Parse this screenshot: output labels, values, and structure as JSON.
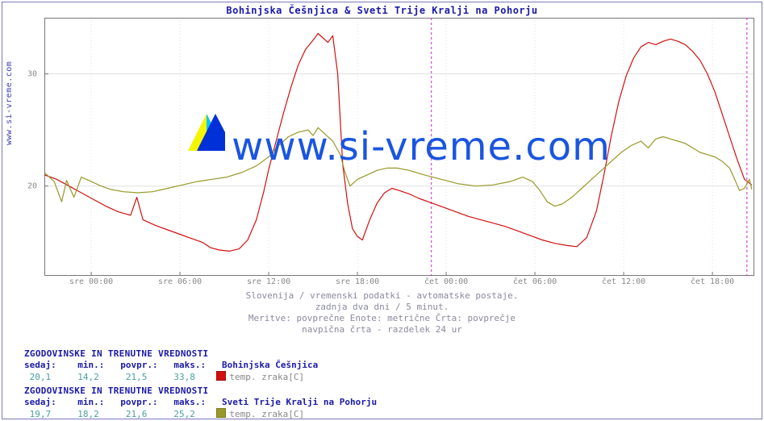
{
  "frame_border_color": "#7a7ab8",
  "side_label": "www.si-vreme.com",
  "title": "Bohinjska Češnjica & Sveti Trije Kralji na Pohorju",
  "watermark_text": "www.si-vreme.com",
  "watermark_color": "#1a55e0",
  "chart": {
    "type": "line",
    "background_color": "#ffffff",
    "grid_color": "#e0e0e0",
    "axis_color": "#777777",
    "xlim": [
      0,
      576
    ],
    "ylim": [
      12,
      35
    ],
    "yticks": [
      20,
      30
    ],
    "xtick_positions": [
      38,
      110,
      182,
      254,
      326,
      398,
      470,
      542
    ],
    "xtick_labels": [
      "sre 00:00",
      "sre 06:00",
      "sre 12:00",
      "sre 18:00",
      "čet 00:00",
      "čet 06:00",
      "čet 12:00",
      "čet 18:00"
    ],
    "day_marker_x": 314,
    "now_marker_x": 570,
    "marker_color": "#d020d0",
    "series": [
      {
        "name": "Bohinjska Češnjica",
        "label": "temp. zraka[C]",
        "color": "#d01010",
        "width": 1.2,
        "points": [
          [
            0,
            21.0
          ],
          [
            10,
            20.6
          ],
          [
            20,
            20.0
          ],
          [
            30,
            19.4
          ],
          [
            40,
            18.8
          ],
          [
            50,
            18.2
          ],
          [
            60,
            17.7
          ],
          [
            70,
            17.4
          ],
          [
            75,
            19.0
          ],
          [
            80,
            17.0
          ],
          [
            90,
            16.5
          ],
          [
            100,
            16.1
          ],
          [
            110,
            15.7
          ],
          [
            120,
            15.3
          ],
          [
            128,
            15.0
          ],
          [
            135,
            14.5
          ],
          [
            142,
            14.3
          ],
          [
            150,
            14.2
          ],
          [
            158,
            14.4
          ],
          [
            165,
            15.2
          ],
          [
            172,
            17.0
          ],
          [
            178,
            19.5
          ],
          [
            182,
            21.5
          ],
          [
            188,
            24.0
          ],
          [
            194,
            26.5
          ],
          [
            200,
            28.8
          ],
          [
            206,
            30.8
          ],
          [
            212,
            32.2
          ],
          [
            218,
            33.0
          ],
          [
            222,
            33.6
          ],
          [
            226,
            33.2
          ],
          [
            230,
            32.8
          ],
          [
            234,
            33.4
          ],
          [
            238,
            30.0
          ],
          [
            240,
            26.0
          ],
          [
            242,
            22.0
          ],
          [
            246,
            18.5
          ],
          [
            250,
            16.2
          ],
          [
            254,
            15.5
          ],
          [
            258,
            15.2
          ],
          [
            264,
            17.0
          ],
          [
            270,
            18.5
          ],
          [
            276,
            19.4
          ],
          [
            282,
            19.8
          ],
          [
            288,
            19.6
          ],
          [
            296,
            19.3
          ],
          [
            304,
            18.9
          ],
          [
            314,
            18.5
          ],
          [
            324,
            18.1
          ],
          [
            334,
            17.7
          ],
          [
            344,
            17.3
          ],
          [
            354,
            17.0
          ],
          [
            364,
            16.7
          ],
          [
            374,
            16.4
          ],
          [
            384,
            16.0
          ],
          [
            394,
            15.6
          ],
          [
            404,
            15.2
          ],
          [
            414,
            14.9
          ],
          [
            424,
            14.7
          ],
          [
            432,
            14.6
          ],
          [
            440,
            15.4
          ],
          [
            448,
            17.8
          ],
          [
            454,
            21.0
          ],
          [
            460,
            24.5
          ],
          [
            466,
            27.5
          ],
          [
            472,
            29.8
          ],
          [
            478,
            31.4
          ],
          [
            484,
            32.4
          ],
          [
            490,
            32.8
          ],
          [
            496,
            32.6
          ],
          [
            502,
            32.9
          ],
          [
            508,
            33.1
          ],
          [
            514,
            32.9
          ],
          [
            520,
            32.6
          ],
          [
            526,
            32.0
          ],
          [
            532,
            31.2
          ],
          [
            538,
            30.0
          ],
          [
            544,
            28.4
          ],
          [
            550,
            26.4
          ],
          [
            556,
            24.4
          ],
          [
            562,
            22.4
          ],
          [
            568,
            20.6
          ],
          [
            574,
            20.1
          ]
        ]
      },
      {
        "name": "Sveti Trije Kralji na Pohorju",
        "label": "temp. zraka[C]",
        "color": "#98982a",
        "width": 1.2,
        "points": [
          [
            0,
            21.2
          ],
          [
            8,
            20.4
          ],
          [
            14,
            18.6
          ],
          [
            18,
            20.5
          ],
          [
            24,
            19.0
          ],
          [
            30,
            20.8
          ],
          [
            38,
            20.4
          ],
          [
            46,
            20.0
          ],
          [
            54,
            19.7
          ],
          [
            64,
            19.5
          ],
          [
            76,
            19.4
          ],
          [
            88,
            19.5
          ],
          [
            100,
            19.8
          ],
          [
            112,
            20.1
          ],
          [
            124,
            20.4
          ],
          [
            136,
            20.6
          ],
          [
            148,
            20.8
          ],
          [
            160,
            21.2
          ],
          [
            172,
            21.8
          ],
          [
            182,
            22.6
          ],
          [
            190,
            23.6
          ],
          [
            198,
            24.4
          ],
          [
            206,
            24.8
          ],
          [
            214,
            25.0
          ],
          [
            218,
            24.5
          ],
          [
            222,
            25.2
          ],
          [
            228,
            24.6
          ],
          [
            234,
            24.0
          ],
          [
            240,
            22.8
          ],
          [
            244,
            21.2
          ],
          [
            248,
            20.0
          ],
          [
            254,
            20.6
          ],
          [
            262,
            21.0
          ],
          [
            270,
            21.4
          ],
          [
            278,
            21.6
          ],
          [
            286,
            21.6
          ],
          [
            296,
            21.4
          ],
          [
            308,
            21.0
          ],
          [
            322,
            20.6
          ],
          [
            336,
            20.2
          ],
          [
            350,
            20.0
          ],
          [
            364,
            20.1
          ],
          [
            378,
            20.4
          ],
          [
            388,
            20.8
          ],
          [
            396,
            20.4
          ],
          [
            402,
            19.6
          ],
          [
            408,
            18.6
          ],
          [
            414,
            18.2
          ],
          [
            420,
            18.4
          ],
          [
            428,
            19.0
          ],
          [
            436,
            19.8
          ],
          [
            444,
            20.6
          ],
          [
            452,
            21.4
          ],
          [
            460,
            22.2
          ],
          [
            468,
            23.0
          ],
          [
            476,
            23.6
          ],
          [
            484,
            24.0
          ],
          [
            490,
            23.4
          ],
          [
            496,
            24.2
          ],
          [
            502,
            24.4
          ],
          [
            508,
            24.2
          ],
          [
            514,
            24.0
          ],
          [
            520,
            23.8
          ],
          [
            526,
            23.4
          ],
          [
            532,
            23.0
          ],
          [
            538,
            22.8
          ],
          [
            544,
            22.6
          ],
          [
            550,
            22.2
          ],
          [
            556,
            21.6
          ],
          [
            560,
            20.6
          ],
          [
            564,
            19.6
          ],
          [
            568,
            19.8
          ],
          [
            572,
            20.6
          ],
          [
            574,
            19.7
          ]
        ]
      }
    ]
  },
  "captions": [
    "Slovenija / vremenski podatki - avtomatske postaje.",
    "zadnja dva dni / 5 minut.",
    "Meritve: povprečne  Enote: metrične  Črta: povprečje",
    "navpična črta - razdelek 24 ur"
  ],
  "stats_header": "ZGODOVINSKE IN TRENUTNE VREDNOSTI",
  "stats_labels": "sedaj:    min.:   povpr.:   maks.:",
  "stats": [
    {
      "series_name": "Bohinjska Češnjica",
      "series_label": "temp. zraka[C]",
      "swatch": "#d01010",
      "sedaj": "20,1",
      "min": "14,2",
      "povpr": "21,5",
      "maks": "33,8"
    },
    {
      "series_name": "Sveti Trije Kralji na Pohorju",
      "series_label": "temp. zraka[C]",
      "swatch": "#98982a",
      "sedaj": "19,7",
      "min": "18,2",
      "povpr": "21,6",
      "maks": "25,2"
    }
  ]
}
